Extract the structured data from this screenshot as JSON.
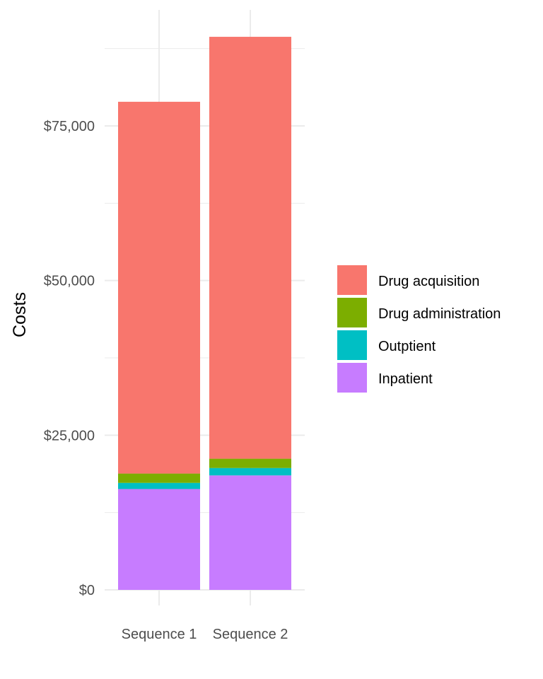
{
  "chart_data": {
    "type": "bar",
    "stacked": true,
    "categories": [
      "Sequence 1",
      "Sequence 2"
    ],
    "series": [
      {
        "name": "Inpatient",
        "color": "#C77CFF",
        "values": [
          16300,
          18500
        ]
      },
      {
        "name": "Outptient",
        "color": "#00BFC4",
        "values": [
          1000,
          1200
        ]
      },
      {
        "name": "Drug administration",
        "color": "#7CAE00",
        "values": [
          1500,
          1500
        ]
      },
      {
        "name": "Drug acquisition",
        "color": "#F8766D",
        "values": [
          60100,
          68200
        ]
      }
    ],
    "ylabel": "Costs",
    "xlabel": "",
    "ylim": [
      0,
      90000
    ],
    "yticks": [
      0,
      25000,
      50000,
      75000
    ],
    "ytick_labels": [
      "$0",
      "$25,000",
      "$50,000",
      "$75,000"
    ],
    "grid": true,
    "legend_position": "right",
    "legend_order": [
      "Drug acquisition",
      "Drug administration",
      "Outptient",
      "Inpatient"
    ]
  }
}
